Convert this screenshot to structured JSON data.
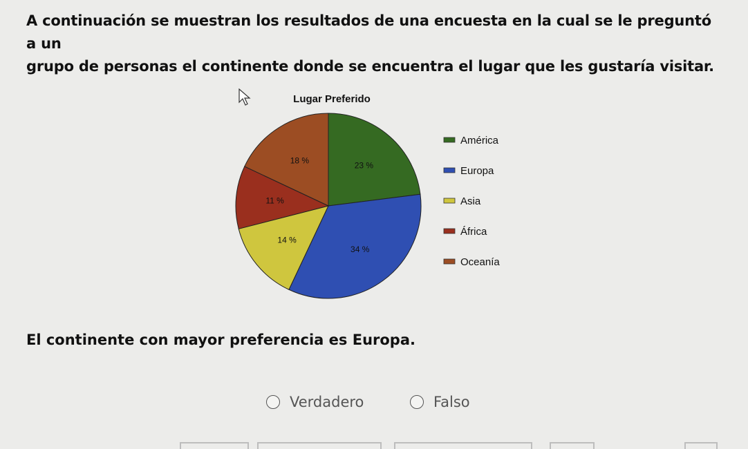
{
  "question": {
    "line1": "A continuación se muestran los resultados de una encuesta en la cual se le preguntó a un",
    "line2": "grupo de personas el continente donde se encuentra el lugar que les gustaría visitar."
  },
  "statement": "El continente con mayor preferencia es Europa.",
  "options": {
    "true_label": "Verdadero",
    "false_label": "Falso"
  },
  "chart_data": {
    "type": "pie",
    "title": "Lugar Preferido",
    "legend_position": "right",
    "slices": [
      {
        "label": "América",
        "value": 23,
        "display": "23 %",
        "color": "#356a22"
      },
      {
        "label": "Europa",
        "value": 34,
        "display": "34 %",
        "color": "#2f4fb2"
      },
      {
        "label": "Asia",
        "value": 14,
        "display": "14 %",
        "color": "#cfc63e"
      },
      {
        "label": "África",
        "value": 11,
        "display": "11 %",
        "color": "#9a2f1e"
      },
      {
        "label": "Oceanía",
        "value": 18,
        "display": "18 %",
        "color": "#9c4d23"
      }
    ]
  }
}
